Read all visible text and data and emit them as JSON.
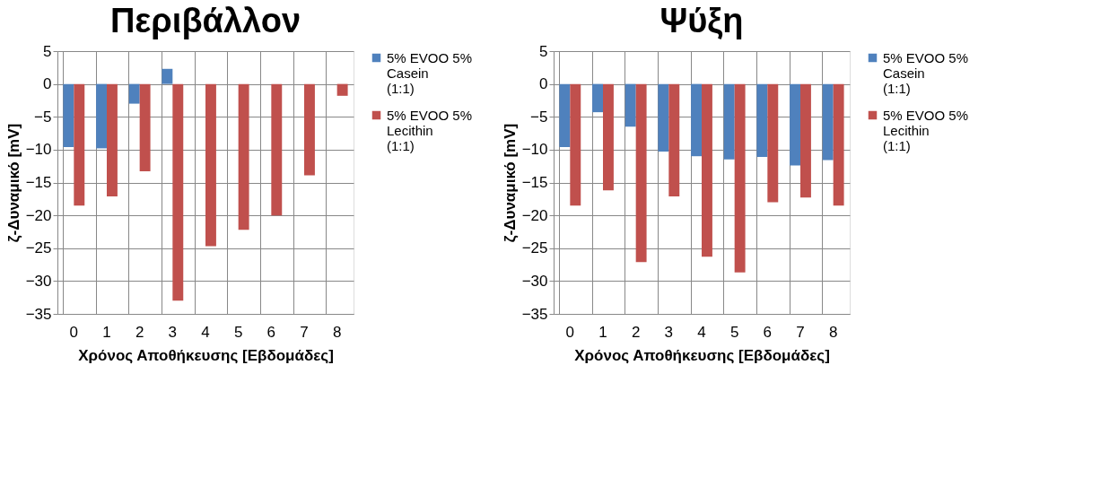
{
  "chart_data": [
    {
      "type": "bar",
      "title": "Περιβάλλον",
      "xlabel": "Χρόνος Αποθήκευσης [Εβδομάδες]",
      "ylabel": "ζ-Δυναμικό [mV]",
      "categories": [
        "0",
        "1",
        "2",
        "3",
        "4",
        "5",
        "6",
        "7",
        "8"
      ],
      "ylim": [
        -35,
        5
      ],
      "yticks": [
        -35,
        -30,
        -25,
        -20,
        -15,
        -10,
        -5,
        0,
        5
      ],
      "grid": true,
      "legend": "right",
      "series": [
        {
          "name": "5% EVOO 5% Casein (1:1)",
          "color": "#4f81bd",
          "values": [
            -9.6,
            -9.8,
            -3.0,
            2.3,
            null,
            null,
            null,
            null,
            null
          ]
        },
        {
          "name": "5% EVOO 5% Lecithin (1:1)",
          "color": "#c0504d",
          "values": [
            -18.5,
            -17.1,
            -13.3,
            -33.0,
            -24.7,
            -22.2,
            -20.0,
            -13.9,
            -1.8
          ]
        }
      ]
    },
    {
      "type": "bar",
      "title": "Ψύξη",
      "xlabel": "Χρόνος Αποθήκευσης [Εβδομάδες]",
      "ylabel": "ζ-Δυναμικό [mV]",
      "categories": [
        "0",
        "1",
        "2",
        "3",
        "4",
        "5",
        "6",
        "7",
        "8"
      ],
      "ylim": [
        -35,
        5
      ],
      "yticks": [
        -35,
        -30,
        -25,
        -20,
        -15,
        -10,
        -5,
        0,
        5
      ],
      "grid": true,
      "legend": "right",
      "series": [
        {
          "name": "5% EVOO 5% Casein (1:1)",
          "color": "#4f81bd",
          "values": [
            -9.6,
            -4.3,
            -6.5,
            -10.3,
            -11.0,
            -11.5,
            -11.1,
            -12.4,
            -11.6
          ]
        },
        {
          "name": "5% EVOO 5% Lecithin (1:1)",
          "color": "#c0504d",
          "values": [
            -18.5,
            -16.2,
            -27.1,
            -17.1,
            -26.3,
            -28.7,
            -18.0,
            -17.3,
            -18.5
          ]
        }
      ]
    }
  ]
}
